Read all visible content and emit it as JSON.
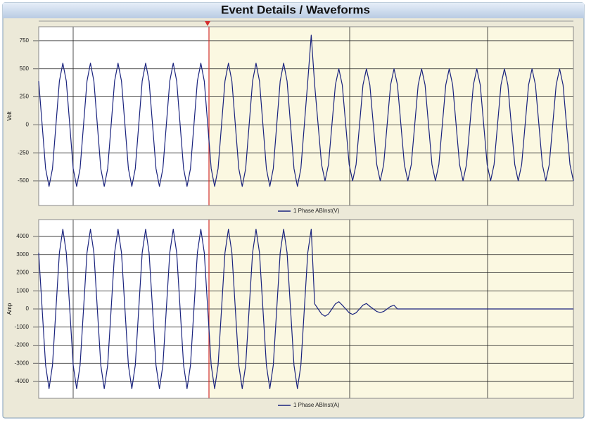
{
  "title": "Event Details / Waveforms",
  "chart_data": [
    {
      "type": "line",
      "ylabel": "Volt",
      "ylim": [
        -720,
        875
      ],
      "yticks": [
        -500,
        -250,
        0,
        250,
        500,
        750
      ],
      "grid": true,
      "series": [
        {
          "name": "1 Phase ABInst(V)",
          "color": "#1a237e",
          "values": [
            390,
            0,
            -390,
            -550,
            -390,
            0,
            390,
            550,
            390,
            0,
            -390,
            -550,
            -390,
            0,
            390,
            550,
            390,
            0,
            -390,
            -550,
            -390,
            0,
            390,
            550,
            390,
            0,
            -390,
            -550,
            -390,
            0,
            390,
            550,
            390,
            0,
            -390,
            -550,
            -390,
            0,
            390,
            550,
            390,
            0,
            -390,
            -550,
            -390,
            0,
            390,
            550,
            390,
            0,
            -390,
            -550,
            -390,
            0,
            390,
            550,
            390,
            0,
            -390,
            -550,
            -390,
            0,
            390,
            550,
            390,
            0,
            -390,
            -550,
            -390,
            0,
            390,
            550,
            390,
            0,
            -390,
            -550,
            -390,
            0,
            390,
            800,
            355,
            0,
            -355,
            -500,
            -355,
            0,
            355,
            500,
            355,
            0,
            -355,
            -500,
            -355,
            0,
            355,
            500,
            355,
            0,
            -355,
            -500,
            -355,
            0,
            355,
            500,
            355,
            0,
            -355,
            -500,
            -355,
            0,
            355,
            500,
            355,
            0,
            -355,
            -500,
            -355,
            0,
            355,
            500,
            355,
            0,
            -355,
            -500,
            -355,
            0,
            355,
            500,
            355,
            0,
            -355,
            -500,
            -355,
            0,
            355,
            500,
            355,
            0,
            -355,
            -500,
            -355,
            0,
            355,
            500,
            355,
            0,
            -355,
            -500,
            -355,
            0,
            355,
            500,
            355,
            0,
            -355,
            -500
          ]
        }
      ]
    },
    {
      "type": "line",
      "ylabel": "Amp",
      "ylim": [
        -4930,
        4930
      ],
      "yticks": [
        -4000,
        -3000,
        -2000,
        -1000,
        0,
        1000,
        2000,
        3000,
        4000
      ],
      "grid": true,
      "series": [
        {
          "name": "1 Phase ABInst(A)",
          "color": "#1a237e",
          "values": [
            3100,
            0,
            -3100,
            -4400,
            -3100,
            0,
            3100,
            4400,
            3100,
            0,
            -3100,
            -4400,
            -3100,
            0,
            3100,
            4400,
            3100,
            0,
            -3100,
            -4400,
            -3100,
            0,
            3100,
            4400,
            3100,
            0,
            -3100,
            -4400,
            -3100,
            0,
            3100,
            4400,
            3100,
            0,
            -3100,
            -4400,
            -3100,
            0,
            3100,
            4400,
            3100,
            0,
            -3100,
            -4400,
            -3100,
            0,
            3100,
            4400,
            3100,
            0,
            -3100,
            -4400,
            -3100,
            0,
            3100,
            4400,
            3100,
            0,
            -3100,
            -4400,
            -3100,
            0,
            3100,
            4400,
            3100,
            0,
            -3100,
            -4400,
            -3100,
            0,
            3100,
            4400,
            3100,
            0,
            -3100,
            -4400,
            -3100,
            0,
            3100,
            4400,
            280,
            0,
            -280,
            -400,
            -280,
            0,
            280,
            400,
            210,
            0,
            -210,
            -300,
            -210,
            0,
            210,
            300,
            140,
            0,
            -140,
            -200,
            -140,
            0,
            140,
            200,
            0,
            0,
            0,
            0,
            0,
            0,
            0,
            0,
            0,
            0,
            0,
            0,
            0,
            0,
            0,
            0,
            0,
            0,
            0,
            0,
            0,
            0,
            0,
            0,
            0,
            0,
            0,
            0,
            0,
            0,
            0,
            0,
            0,
            0,
            0,
            0,
            0,
            0,
            0,
            0,
            0,
            0,
            0,
            0,
            0,
            0,
            0,
            0,
            0,
            0,
            0,
            0
          ]
        }
      ]
    }
  ]
}
